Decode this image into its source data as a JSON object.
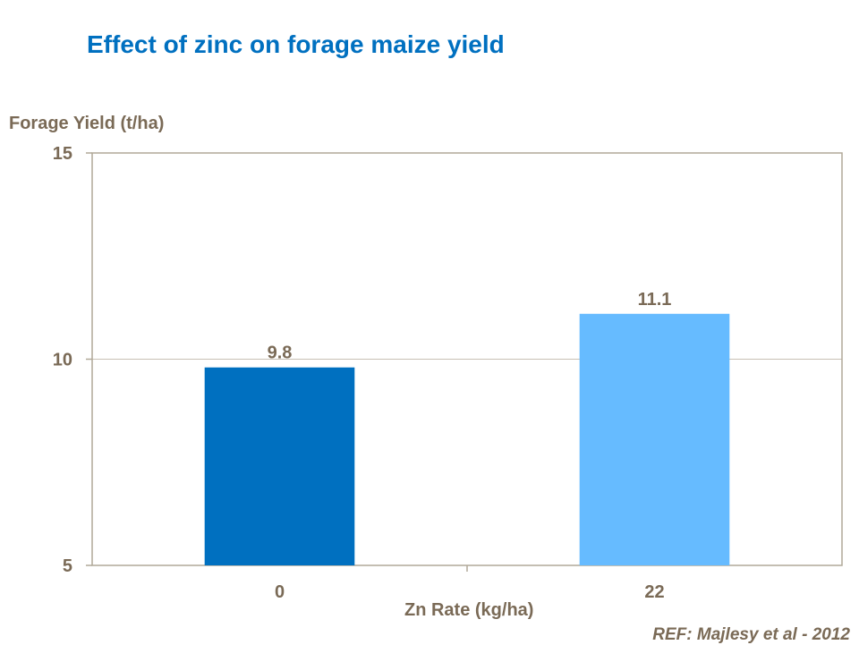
{
  "chart_data": {
    "type": "bar",
    "title": "Effect of zinc on forage maize yield",
    "xlabel": "Zn Rate (kg/ha)",
    "ylabel": "Forage Yield (t/ha)",
    "categories": [
      "0",
      "22"
    ],
    "values": [
      9.8,
      11.1
    ],
    "data_labels": [
      "9.8",
      "11.1"
    ],
    "bar_colors": [
      "#0070C0",
      "#66BBFF"
    ],
    "ylim": [
      5,
      15
    ],
    "yticks": [
      5,
      10,
      15
    ],
    "grid": true,
    "legend": "none"
  },
  "reference": "REF: Majlesy et al  - 2012",
  "colors": {
    "title": "#0070C0",
    "text": "#7A6A56",
    "axis": "#B0A898"
  }
}
